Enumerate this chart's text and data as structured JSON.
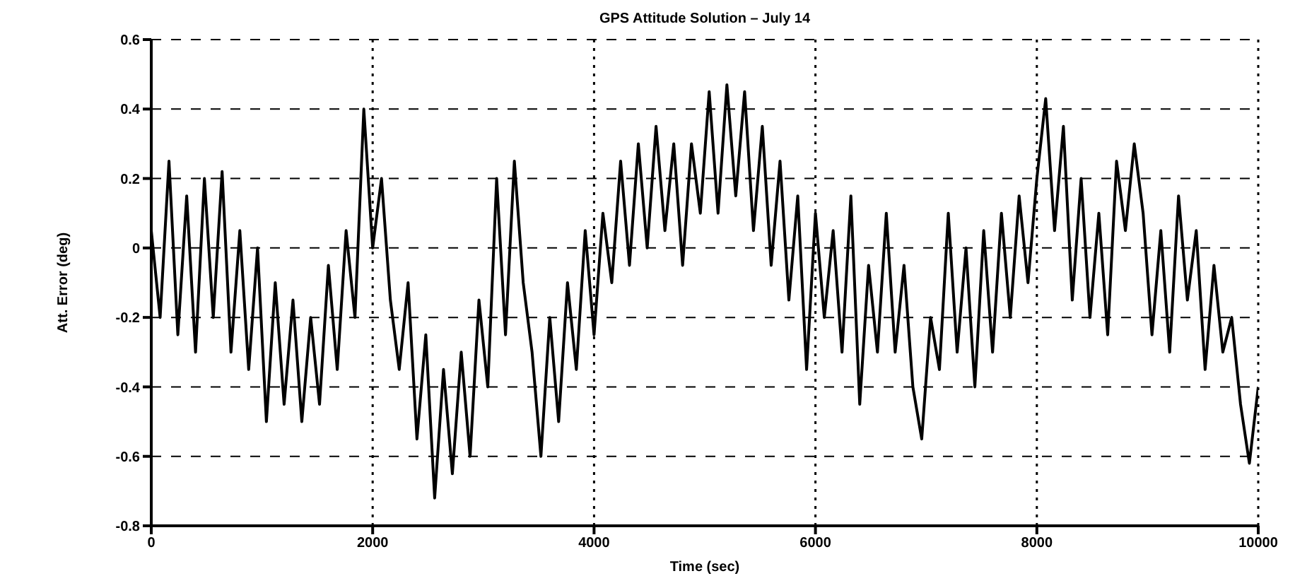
{
  "chart_data": {
    "type": "line",
    "title": "GPS Attitude Solution – July 14",
    "xlabel": "Time (sec)",
    "ylabel": "Att. Error (deg)",
    "xlim": [
      0,
      10000
    ],
    "xticks": [
      0,
      2000,
      4000,
      6000,
      8000,
      10000
    ],
    "ylim": [
      -0.8,
      0.6
    ],
    "yticks": [
      -0.8,
      -0.6,
      -0.4,
      -0.2,
      0,
      0.2,
      0.4,
      0.6
    ],
    "grid": true,
    "marker": "none",
    "line_style": "solid",
    "series": [
      {
        "color": "#000000",
        "x": [
          0,
          80,
          160,
          240,
          320,
          400,
          480,
          560,
          640,
          720,
          800,
          880,
          960,
          1040,
          1120,
          1200,
          1280,
          1360,
          1440,
          1520,
          1600,
          1680,
          1760,
          1840,
          1920,
          2000,
          2080,
          2160,
          2240,
          2320,
          2400,
          2480,
          2560,
          2640,
          2720,
          2800,
          2880,
          2960,
          3040,
          3120,
          3200,
          3280,
          3360,
          3440,
          3520,
          3600,
          3680,
          3760,
          3840,
          3920,
          4000,
          4080,
          4160,
          4240,
          4320,
          4400,
          4480,
          4560,
          4640,
          4720,
          4800,
          4880,
          4960,
          5040,
          5120,
          5200,
          5280,
          5360,
          5440,
          5520,
          5600,
          5680,
          5760,
          5840,
          5920,
          6000,
          6080,
          6160,
          6240,
          6320,
          6400,
          6480,
          6560,
          6640,
          6720,
          6800,
          6880,
          6960,
          7040,
          7120,
          7200,
          7280,
          7360,
          7440,
          7520,
          7600,
          7680,
          7760,
          7840,
          7920,
          8000,
          8080,
          8160,
          8240,
          8320,
          8400,
          8480,
          8560,
          8640,
          8720,
          8800,
          8880,
          8960,
          9040,
          9120,
          9200,
          9280,
          9360,
          9440,
          9520,
          9600,
          9680,
          9760,
          9840,
          9920,
          10000
        ],
        "values": [
          0.05,
          -0.2,
          0.25,
          -0.25,
          0.15,
          -0.3,
          0.2,
          -0.2,
          0.22,
          -0.3,
          0.05,
          -0.35,
          0.0,
          -0.5,
          -0.1,
          -0.45,
          -0.15,
          -0.5,
          -0.2,
          -0.45,
          -0.05,
          -0.35,
          0.05,
          -0.2,
          0.4,
          0.0,
          0.2,
          -0.15,
          -0.35,
          -0.1,
          -0.55,
          -0.25,
          -0.72,
          -0.35,
          -0.65,
          -0.3,
          -0.6,
          -0.15,
          -0.4,
          0.2,
          -0.25,
          0.25,
          -0.1,
          -0.3,
          -0.6,
          -0.2,
          -0.5,
          -0.1,
          -0.35,
          0.05,
          -0.25,
          0.1,
          -0.1,
          0.25,
          -0.05,
          0.3,
          0.0,
          0.35,
          0.05,
          0.3,
          -0.05,
          0.3,
          0.1,
          0.45,
          0.1,
          0.47,
          0.15,
          0.45,
          0.05,
          0.35,
          -0.05,
          0.25,
          -0.15,
          0.15,
          -0.35,
          0.1,
          -0.2,
          0.05,
          -0.3,
          0.15,
          -0.45,
          -0.05,
          -0.3,
          0.1,
          -0.3,
          -0.05,
          -0.4,
          -0.55,
          -0.2,
          -0.35,
          0.1,
          -0.3,
          0.0,
          -0.4,
          0.05,
          -0.3,
          0.1,
          -0.2,
          0.15,
          -0.1,
          0.2,
          0.43,
          0.05,
          0.35,
          -0.15,
          0.2,
          -0.2,
          0.1,
          -0.25,
          0.25,
          0.05,
          0.3,
          0.1,
          -0.25,
          0.05,
          -0.3,
          0.15,
          -0.15,
          0.05,
          -0.35,
          -0.05,
          -0.3,
          -0.2,
          -0.45,
          -0.62,
          -0.4
        ]
      }
    ]
  }
}
